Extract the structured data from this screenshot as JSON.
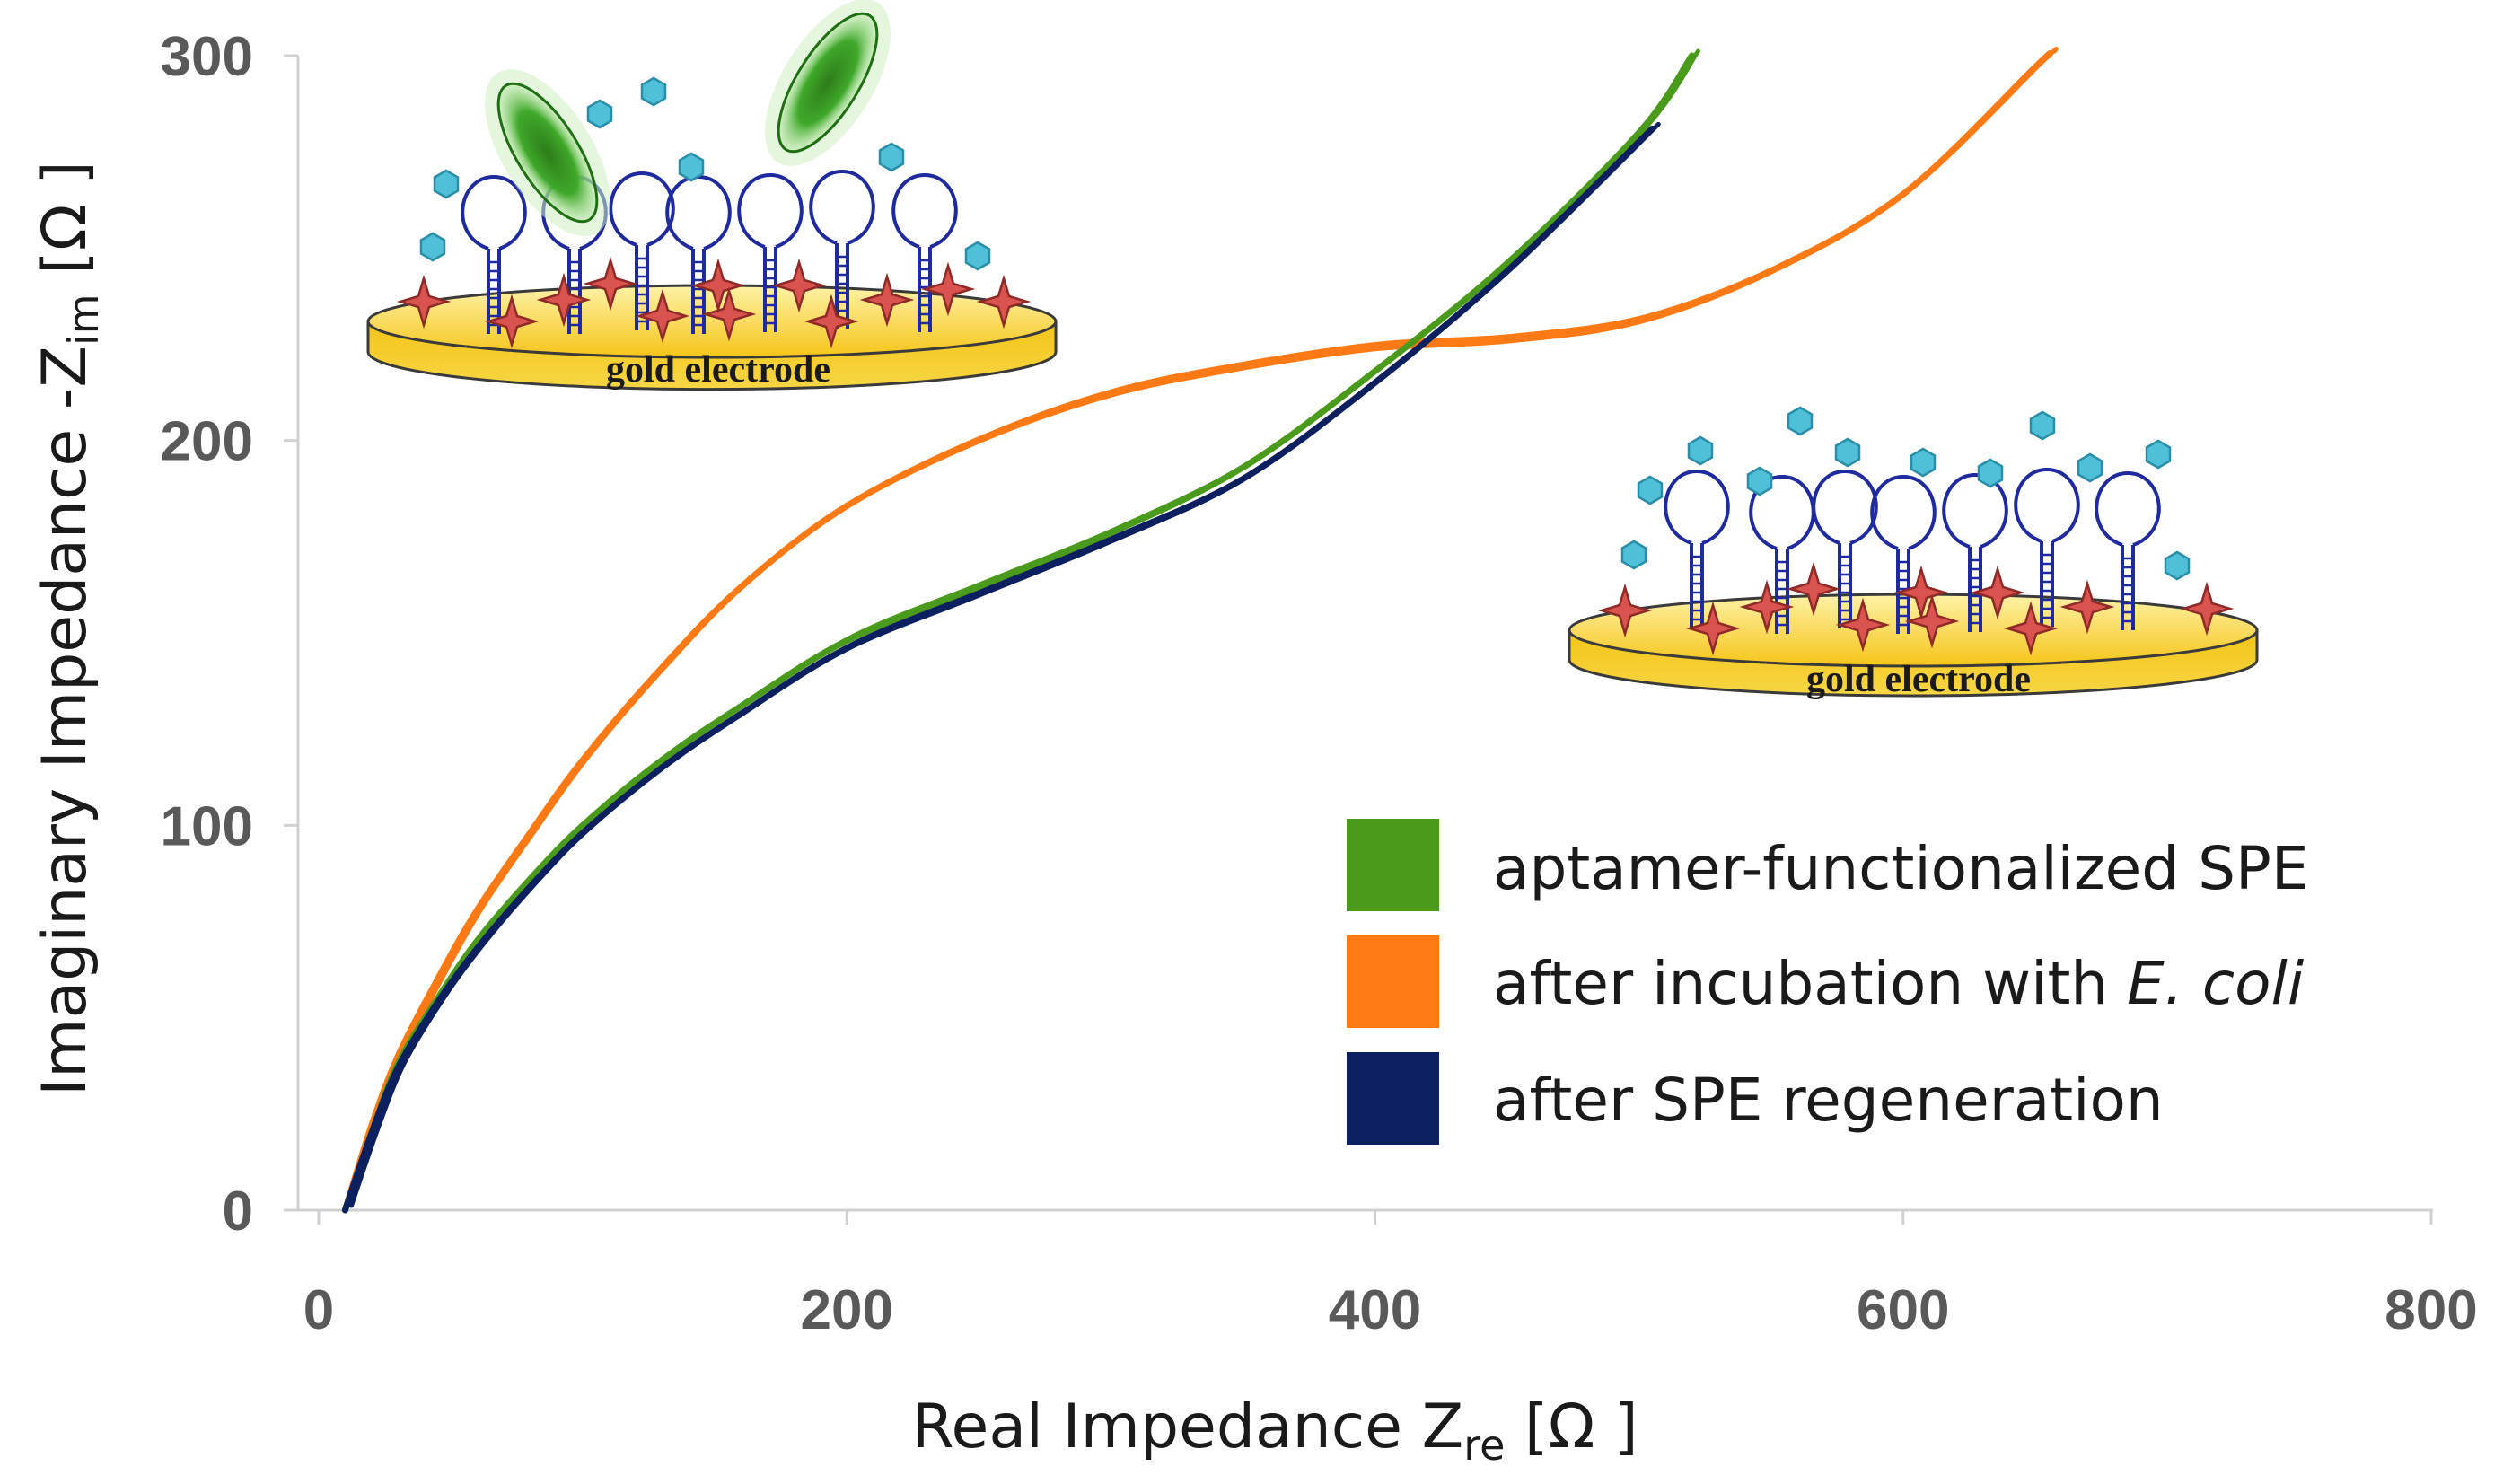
{
  "chart_data": {
    "type": "line",
    "title": "",
    "xlabel": {
      "main": "Real Impedance Z",
      "sub": "re",
      "unit": " [Ω ]"
    },
    "ylabel": {
      "main": "Imaginary Impedance -Z",
      "sub": "im",
      "unit": " [Ω ]"
    },
    "xlim": [
      0,
      800
    ],
    "ylim": [
      0,
      300
    ],
    "xticks": [
      "0",
      "200",
      "400",
      "600",
      "800"
    ],
    "yticks": [
      "0",
      "100",
      "200",
      "300"
    ],
    "legend_position": "lower-right",
    "series": [
      {
        "name": "aptamer-functionalized SPE",
        "color": "#4a9a1c",
        "points": [
          [
            10,
            0
          ],
          [
            20,
            20
          ],
          [
            30,
            38
          ],
          [
            45,
            55
          ],
          [
            60,
            70
          ],
          [
            80,
            86
          ],
          [
            100,
            100
          ],
          [
            130,
            117
          ],
          [
            160,
            131
          ],
          [
            200,
            148
          ],
          [
            250,
            162
          ],
          [
            300,
            176
          ],
          [
            350,
            193
          ],
          [
            400,
            218
          ],
          [
            450,
            246
          ],
          [
            500,
            280
          ],
          [
            520,
            300
          ]
        ]
      },
      {
        "name": "after incubation with E. coli",
        "name_parts": {
          "prefix": "after incubation with ",
          "italic": "E. coli"
        },
        "color": "#ff7a14",
        "points": [
          [
            10,
            0
          ],
          [
            20,
            22
          ],
          [
            30,
            40
          ],
          [
            45,
            60
          ],
          [
            60,
            78
          ],
          [
            80,
            98
          ],
          [
            100,
            117
          ],
          [
            130,
            141
          ],
          [
            160,
            162
          ],
          [
            200,
            183
          ],
          [
            250,
            200
          ],
          [
            300,
            212
          ],
          [
            350,
            219
          ],
          [
            400,
            224
          ],
          [
            450,
            226
          ],
          [
            500,
            231
          ],
          [
            550,
            244
          ],
          [
            600,
            264
          ],
          [
            650,
            297
          ],
          [
            655,
            300
          ]
        ]
      },
      {
        "name": "after SPE regeneration",
        "color": "#0c1f5e",
        "points": [
          [
            10,
            0
          ],
          [
            20,
            20
          ],
          [
            30,
            37
          ],
          [
            45,
            54
          ],
          [
            60,
            68
          ],
          [
            80,
            84
          ],
          [
            100,
            98
          ],
          [
            130,
            115
          ],
          [
            160,
            129
          ],
          [
            200,
            146
          ],
          [
            250,
            160
          ],
          [
            300,
            174
          ],
          [
            350,
            190
          ],
          [
            400,
            215
          ],
          [
            450,
            244
          ],
          [
            505,
            281
          ]
        ]
      }
    ]
  },
  "illustrations": {
    "top_left_label": "gold electrode",
    "right_label": "gold electrode"
  }
}
